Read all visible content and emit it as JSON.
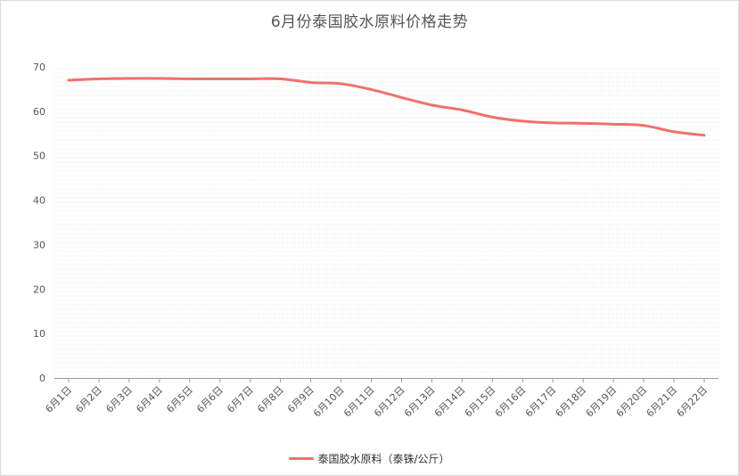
{
  "colors": {
    "series": "#f0716b",
    "axis": "#999999",
    "grid": "#e8e8e8"
  },
  "chart_data": {
    "type": "line",
    "title": "6月份泰国胶水原料价格走势",
    "xlabel": "",
    "ylabel": "",
    "ylim": [
      0,
      70
    ],
    "yticks": [
      0,
      10,
      20,
      30,
      40,
      50,
      60,
      70
    ],
    "grid": true,
    "legend_position": "bottom-center",
    "categories": [
      "6月1日",
      "6月2日",
      "6月3日",
      "6月4日",
      "6月5日",
      "6月6日",
      "6月7日",
      "6月8日",
      "6月9日",
      "6月10日",
      "6月11日",
      "6月12日",
      "6月13日",
      "6月14日",
      "6月15日",
      "6月16日",
      "6月17日",
      "6月18日",
      "6月19日",
      "6月20日",
      "6月21日",
      "6月22日"
    ],
    "series": [
      {
        "name": "泰国胶水原料（泰铢/公斤）",
        "values": [
          67.0,
          67.3,
          67.4,
          67.4,
          67.3,
          67.3,
          67.3,
          67.3,
          66.5,
          66.2,
          64.9,
          63.1,
          61.4,
          60.3,
          58.7,
          57.8,
          57.4,
          57.3,
          57.1,
          56.8,
          55.4,
          54.6
        ]
      }
    ]
  }
}
